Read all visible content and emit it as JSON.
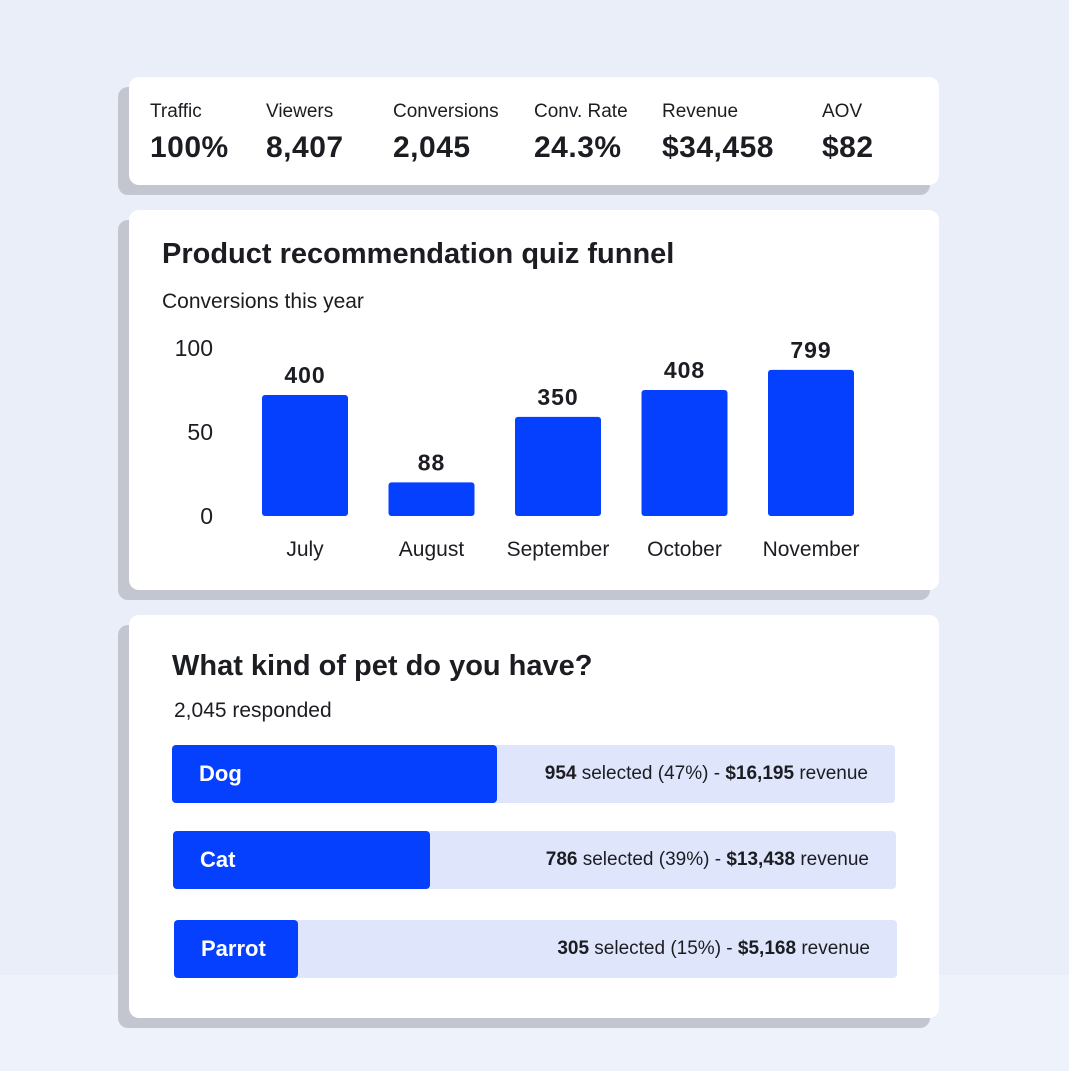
{
  "stats": [
    {
      "label": "Traffic",
      "value": "100%"
    },
    {
      "label": "Viewers",
      "value": "8,407"
    },
    {
      "label": "Conversions",
      "value": "2,045"
    },
    {
      "label": "Conv. Rate",
      "value": "24.3%"
    },
    {
      "label": "Revenue",
      "value": "$34,458"
    },
    {
      "label": "AOV",
      "value": "$82"
    }
  ],
  "funnel": {
    "title": "Product recommendation quiz funnel",
    "subtitle": "Conversions this year"
  },
  "chart_data": {
    "type": "bar",
    "categories": [
      "July",
      "August",
      "September",
      "October",
      "November"
    ],
    "values": [
      400,
      88,
      350,
      408,
      799
    ],
    "data_labels": [
      "400",
      "88",
      "350",
      "408",
      "799"
    ],
    "bar_levels": [
      0.72,
      0.2,
      0.59,
      0.75,
      0.87
    ],
    "yticks": [
      "0",
      "50",
      "100"
    ],
    "bar_color": "#0540ff"
  },
  "question": {
    "title": "What kind of pet do you have?",
    "responded": "2,045 responded",
    "options": [
      {
        "label": "Dog",
        "count": "954",
        "selected_text": " selected (47%) - ",
        "revenue": "$16,195",
        "revenue_text": " revenue",
        "fill": 0.45
      },
      {
        "label": "Cat",
        "count": "786",
        "selected_text": " selected (39%) - ",
        "revenue": "$13,438",
        "revenue_text": " revenue",
        "fill": 0.355
      },
      {
        "label": "Parrot",
        "count": "305",
        "selected_text": " selected (15%) - ",
        "revenue": "$5,168",
        "revenue_text": " revenue",
        "fill": 0.171
      }
    ],
    "fill_color": "#0540ff",
    "track_color": "#dfe6fb"
  }
}
